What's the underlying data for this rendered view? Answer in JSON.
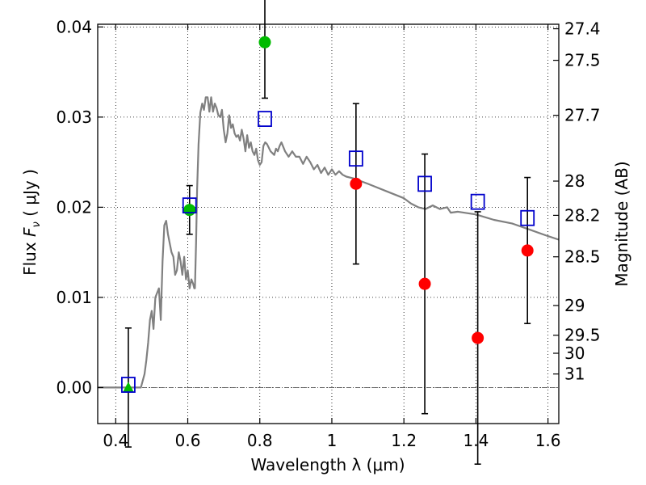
{
  "chart_data": {
    "type": "scatter",
    "xlabel": "Wavelength  λ (μm)",
    "ylabel": "Flux  F_ν  ( μJy )",
    "ylabel_parts": {
      "prefix": "Flux  ",
      "symbol": "F",
      "subscript": "ν",
      "suffix": "  ( μJy )"
    },
    "y2label": "Magnitude (AB)",
    "xlim": [
      0.35,
      1.63
    ],
    "ylim": [
      -0.004,
      0.0403
    ],
    "grid": true,
    "x_ticks": [
      0.4,
      0.6,
      0.8,
      1.0,
      1.2,
      1.4,
      1.6
    ],
    "x_tick_labels": [
      "0.4",
      "0.6",
      "0.8",
      "1",
      "1.2",
      "1.4",
      "1.6"
    ],
    "y_ticks": [
      0.0,
      0.01,
      0.02,
      0.03,
      0.04
    ],
    "y_tick_labels": [
      "0.00",
      "0.01",
      "0.02",
      "0.03",
      "0.04"
    ],
    "mag_ticks": [
      {
        "label": "27.4",
        "flux": 0.0398
      },
      {
        "label": "27.5",
        "flux": 0.0363
      },
      {
        "label": "27.7",
        "flux": 0.0302
      },
      {
        "label": "28",
        "flux": 0.0229
      },
      {
        "label": "28.2",
        "flux": 0.0191
      },
      {
        "label": "28.5",
        "flux": 0.0145
      },
      {
        "label": "29",
        "flux": 0.0091
      },
      {
        "label": "29.5",
        "flux": 0.0058
      },
      {
        "label": "30",
        "flux": 0.0038
      },
      {
        "label": "31",
        "flux": 0.0015
      }
    ],
    "zero_line": 0.0,
    "model_spectrum": {
      "color": "#808080",
      "x": [
        0.35,
        0.47,
        0.48,
        0.485,
        0.49,
        0.495,
        0.5,
        0.505,
        0.51,
        0.52,
        0.525,
        0.53,
        0.535,
        0.54,
        0.545,
        0.55,
        0.555,
        0.56,
        0.565,
        0.57,
        0.575,
        0.58,
        0.585,
        0.59,
        0.595,
        0.6,
        0.605,
        0.61,
        0.615,
        0.618,
        0.62,
        0.623,
        0.626,
        0.63,
        0.635,
        0.64,
        0.645,
        0.65,
        0.655,
        0.66,
        0.665,
        0.67,
        0.675,
        0.68,
        0.685,
        0.69,
        0.695,
        0.7,
        0.705,
        0.71,
        0.715,
        0.72,
        0.725,
        0.73,
        0.735,
        0.74,
        0.745,
        0.75,
        0.755,
        0.76,
        0.765,
        0.77,
        0.775,
        0.78,
        0.785,
        0.79,
        0.795,
        0.8,
        0.805,
        0.81,
        0.815,
        0.82,
        0.83,
        0.84,
        0.845,
        0.85,
        0.855,
        0.86,
        0.87,
        0.88,
        0.89,
        0.9,
        0.91,
        0.92,
        0.93,
        0.94,
        0.95,
        0.96,
        0.97,
        0.98,
        0.99,
        1.0,
        1.01,
        1.02,
        1.03,
        1.04,
        1.06,
        1.1,
        1.15,
        1.2,
        1.22,
        1.24,
        1.26,
        1.28,
        1.3,
        1.32,
        1.33,
        1.35,
        1.4,
        1.45,
        1.5,
        1.55,
        1.6,
        1.63
      ],
      "y": [
        0.0,
        0.0,
        0.0015,
        0.003,
        0.005,
        0.0075,
        0.0085,
        0.0065,
        0.01,
        0.011,
        0.0075,
        0.014,
        0.018,
        0.0185,
        0.017,
        0.016,
        0.015,
        0.0145,
        0.0125,
        0.013,
        0.015,
        0.014,
        0.0125,
        0.0145,
        0.012,
        0.013,
        0.011,
        0.012,
        0.0115,
        0.011,
        0.011,
        0.016,
        0.022,
        0.027,
        0.0305,
        0.0315,
        0.0308,
        0.0322,
        0.0322,
        0.0306,
        0.0322,
        0.0306,
        0.0315,
        0.031,
        0.0302,
        0.03,
        0.0308,
        0.0286,
        0.0272,
        0.0282,
        0.0302,
        0.0288,
        0.0292,
        0.0282,
        0.0278,
        0.028,
        0.0274,
        0.0286,
        0.0276,
        0.0262,
        0.028,
        0.0266,
        0.0272,
        0.0262,
        0.0258,
        0.0265,
        0.0252,
        0.0247,
        0.025,
        0.0268,
        0.0272,
        0.027,
        0.0262,
        0.0258,
        0.0265,
        0.0262,
        0.0268,
        0.0272,
        0.0262,
        0.0256,
        0.0262,
        0.0256,
        0.0256,
        0.0248,
        0.0256,
        0.025,
        0.0242,
        0.0247,
        0.0238,
        0.0244,
        0.0236,
        0.0242,
        0.0236,
        0.024,
        0.0236,
        0.0234,
        0.0232,
        0.0226,
        0.0218,
        0.021,
        0.0204,
        0.02,
        0.0198,
        0.0202,
        0.0198,
        0.02,
        0.0194,
        0.0195,
        0.0192,
        0.0186,
        0.0182,
        0.0175,
        0.0168,
        0.0164
      ]
    },
    "observed": [
      {
        "x": 0.435,
        "y": 0.0,
        "yerr": 0.0066,
        "marker": "triangle",
        "color": "#00bb00"
      },
      {
        "x": 0.605,
        "y": 0.0197,
        "yerr": 0.0027,
        "marker": "circle",
        "color": "#00bb00"
      },
      {
        "x": 0.814,
        "y": 0.0383,
        "yerr": 0.0062,
        "marker": "circle",
        "color": "#00bb00"
      },
      {
        "x": 1.067,
        "y": 0.0226,
        "yerr": 0.0089,
        "marker": "circle",
        "color": "#ff0000"
      },
      {
        "x": 1.258,
        "y": 0.0115,
        "yerr": 0.0144,
        "marker": "circle",
        "color": "#ff0000"
      },
      {
        "x": 1.405,
        "y": 0.0055,
        "yerr": 0.014,
        "marker": "circle",
        "color": "#ff0000"
      },
      {
        "x": 1.543,
        "y": 0.0152,
        "yerr": 0.0081,
        "marker": "circle",
        "color": "#ff0000"
      }
    ],
    "model_photometry": {
      "color": "#0000cc",
      "marker": "open-square",
      "points": [
        {
          "x": 0.435,
          "y": 0.0003
        },
        {
          "x": 0.605,
          "y": 0.0202
        },
        {
          "x": 0.814,
          "y": 0.0298
        },
        {
          "x": 1.067,
          "y": 0.0254
        },
        {
          "x": 1.258,
          "y": 0.0226
        },
        {
          "x": 1.405,
          "y": 0.0206
        },
        {
          "x": 1.543,
          "y": 0.0188
        }
      ]
    }
  }
}
